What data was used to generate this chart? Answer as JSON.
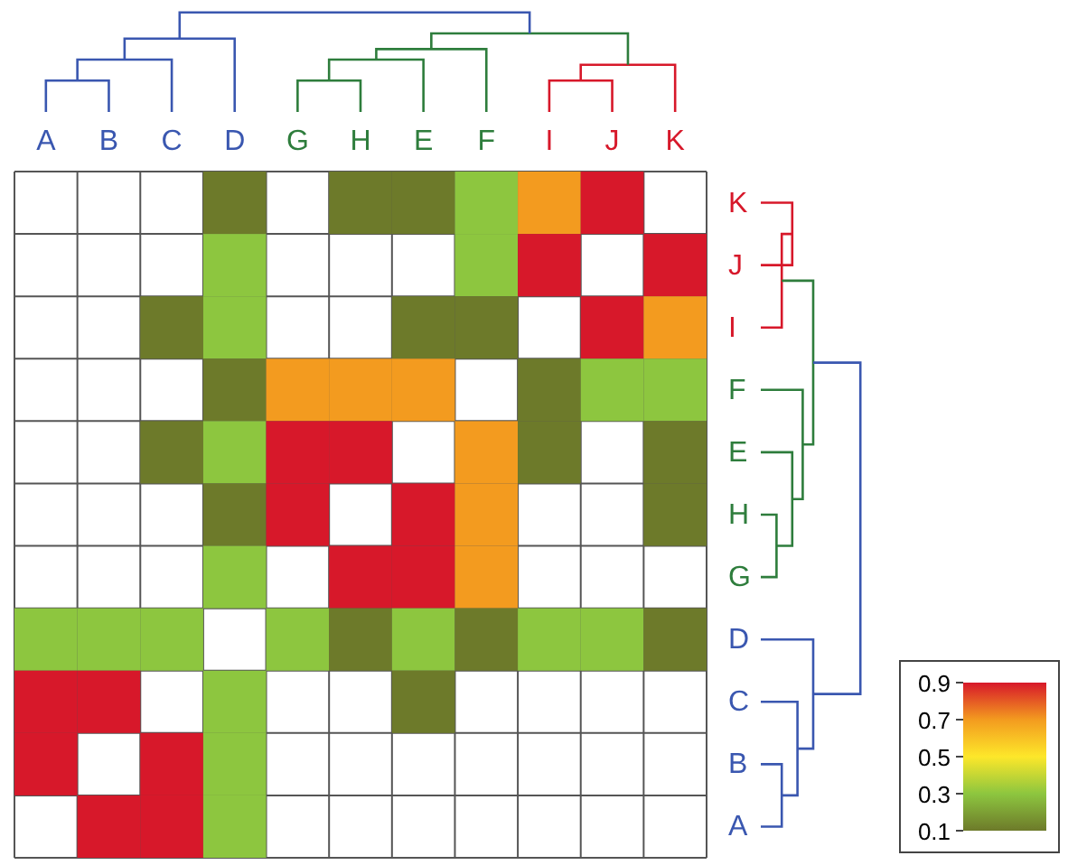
{
  "chart_data": {
    "type": "heatmap",
    "categories": [
      "A",
      "B",
      "C",
      "D",
      "G",
      "H",
      "E",
      "F",
      "I",
      "J",
      "K"
    ],
    "y_categories": [
      "K",
      "J",
      "I",
      "F",
      "E",
      "H",
      "G",
      "D",
      "C",
      "B",
      "A"
    ],
    "cells": [
      [
        null,
        null,
        null,
        0.1,
        null,
        0.1,
        0.1,
        0.3,
        0.7,
        0.9,
        null
      ],
      [
        null,
        null,
        null,
        0.3,
        null,
        null,
        null,
        0.3,
        0.9,
        null,
        0.9
      ],
      [
        null,
        null,
        0.1,
        0.3,
        null,
        null,
        0.1,
        0.1,
        null,
        0.9,
        0.7
      ],
      [
        null,
        null,
        null,
        0.1,
        0.7,
        0.7,
        0.7,
        null,
        0.1,
        0.3,
        0.3
      ],
      [
        null,
        null,
        0.1,
        0.3,
        0.9,
        0.9,
        null,
        0.7,
        0.1,
        null,
        0.1
      ],
      [
        null,
        null,
        null,
        0.1,
        0.9,
        null,
        0.9,
        0.7,
        null,
        null,
        0.1
      ],
      [
        null,
        null,
        null,
        0.3,
        null,
        0.9,
        0.9,
        0.7,
        null,
        null,
        null
      ],
      [
        0.3,
        0.3,
        0.3,
        null,
        0.3,
        0.1,
        0.3,
        0.1,
        0.3,
        0.3,
        0.1
      ],
      [
        0.9,
        0.9,
        null,
        0.3,
        null,
        null,
        0.1,
        null,
        null,
        null,
        null
      ],
      [
        0.9,
        null,
        0.9,
        0.3,
        null,
        null,
        null,
        null,
        null,
        null,
        null
      ],
      [
        null,
        0.9,
        0.9,
        0.3,
        null,
        null,
        null,
        null,
        null,
        null,
        null
      ]
    ],
    "clim": [
      0.1,
      0.9
    ],
    "cticks": [
      0.9,
      0.7,
      0.5,
      0.3,
      0.1
    ],
    "colors": [
      "#d7182a",
      "#f39b1f",
      "#fde72a",
      "#8dc63f",
      "#6d7a2a"
    ],
    "grid": true
  }
}
